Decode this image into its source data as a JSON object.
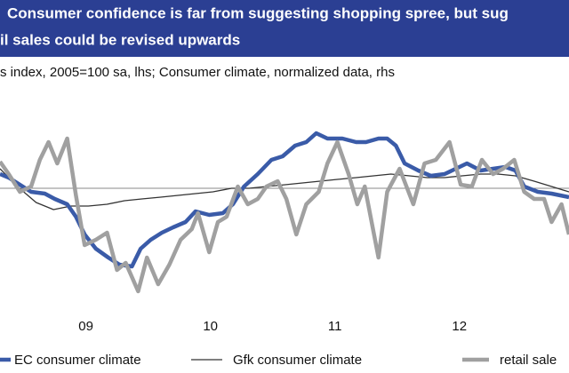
{
  "chart_data": {
    "type": "line",
    "title": [
      "Consumer confidence is far from suggesting shopping spree, but sug",
      "il sales could be revised upwards"
    ],
    "subtitle": "s index, 2005=100 sa, lhs; Consumer climate, normalized data, rhs",
    "xlim": [
      2008.81,
      2013.38
    ],
    "xticks": [
      {
        "value": 2009.5,
        "label": "09"
      },
      {
        "value": 2010.5,
        "label": "10"
      },
      {
        "value": 2011.5,
        "label": "11"
      },
      {
        "value": 2012.5,
        "label": "12"
      }
    ],
    "ylim": [
      0,
      100
    ],
    "series": [
      {
        "name": "EC consumer climate",
        "color": "#3a5ba8",
        "width": 4.5,
        "x": [
          2008.81,
          2008.88,
          2008.97,
          2009.06,
          2009.17,
          2009.25,
          2009.35,
          2009.42,
          2009.49,
          2009.58,
          2009.68,
          2009.77,
          2009.87,
          2009.94,
          2010.02,
          2010.11,
          2010.2,
          2010.3,
          2010.38,
          2010.49,
          2010.6,
          2010.68,
          2010.77,
          2010.88,
          2010.99,
          2011.08,
          2011.18,
          2011.27,
          2011.35,
          2011.44,
          2011.56,
          2011.67,
          2011.75,
          2011.85,
          2011.92,
          2011.99,
          2012.06,
          2012.17,
          2012.27,
          2012.38,
          2012.47,
          2012.56,
          2012.67,
          2012.77,
          2012.87,
          2012.95,
          2013.02,
          2013.13,
          2013.24,
          2013.38
        ],
        "values": [
          72,
          70,
          66,
          62,
          61,
          58,
          55,
          48,
          38,
          30,
          25,
          21,
          20,
          30,
          35,
          39,
          42,
          45,
          51,
          49,
          50,
          55,
          65,
          72,
          80,
          82,
          88,
          90,
          95,
          92,
          92,
          90,
          90,
          92,
          92,
          88,
          78,
          74,
          71,
          72,
          75,
          78,
          74,
          75,
          76,
          74,
          65,
          62,
          61,
          59
        ]
      },
      {
        "name": "Gfk consumer climate",
        "color": "#333333",
        "width": 1.3,
        "x": [
          2008.81,
          2008.95,
          2009.1,
          2009.24,
          2009.38,
          2009.52,
          2009.67,
          2009.81,
          2009.95,
          2010.1,
          2010.24,
          2010.38,
          2010.52,
          2010.67,
          2010.81,
          2010.95,
          2011.1,
          2011.24,
          2011.38,
          2011.52,
          2011.67,
          2011.81,
          2011.95,
          2012.1,
          2012.24,
          2012.38,
          2012.52,
          2012.67,
          2012.81,
          2012.95,
          2013.1,
          2013.24,
          2013.38
        ],
        "values": [
          75,
          65,
          56,
          52,
          54,
          54,
          55,
          57,
          58,
          59,
          60,
          61,
          62,
          64,
          64,
          65,
          66,
          67,
          68,
          69,
          70,
          71,
          72,
          71,
          70,
          70,
          71,
          72,
          72,
          71,
          68,
          65,
          62
        ]
      },
      {
        "name": "retail sale",
        "color": "#a0a0a0",
        "width": 4.5,
        "x": [
          2008.81,
          2008.88,
          2008.97,
          2009.06,
          2009.13,
          2009.2,
          2009.27,
          2009.35,
          2009.42,
          2009.49,
          2009.58,
          2009.67,
          2009.75,
          2009.82,
          2009.92,
          2009.99,
          2010.08,
          2010.17,
          2010.26,
          2010.35,
          2010.4,
          2010.49,
          2010.56,
          2010.63,
          2010.72,
          2010.8,
          2010.88,
          2010.95,
          2011.04,
          2011.11,
          2011.19,
          2011.27,
          2011.37,
          2011.44,
          2011.52,
          2011.61,
          2011.68,
          2011.74,
          2011.85,
          2011.92,
          2012.02,
          2012.13,
          2012.22,
          2012.31,
          2012.42,
          2012.51,
          2012.6,
          2012.68,
          2012.77,
          2012.85,
          2012.94,
          2013.02,
          2013.1,
          2013.18,
          2013.24,
          2013.32,
          2013.38
        ],
        "values": [
          79,
          72,
          62,
          65,
          80,
          90,
          78,
          92,
          60,
          32,
          35,
          39,
          18,
          22,
          6,
          25,
          10,
          21,
          35,
          41,
          50,
          28,
          45,
          48,
          65,
          55,
          58,
          65,
          68,
          58,
          38,
          55,
          62,
          78,
          90,
          72,
          55,
          65,
          25,
          62,
          75,
          55,
          78,
          80,
          90,
          66,
          65,
          80,
          72,
          75,
          80,
          62,
          58,
          58,
          45,
          55,
          38
        ]
      }
    ]
  }
}
